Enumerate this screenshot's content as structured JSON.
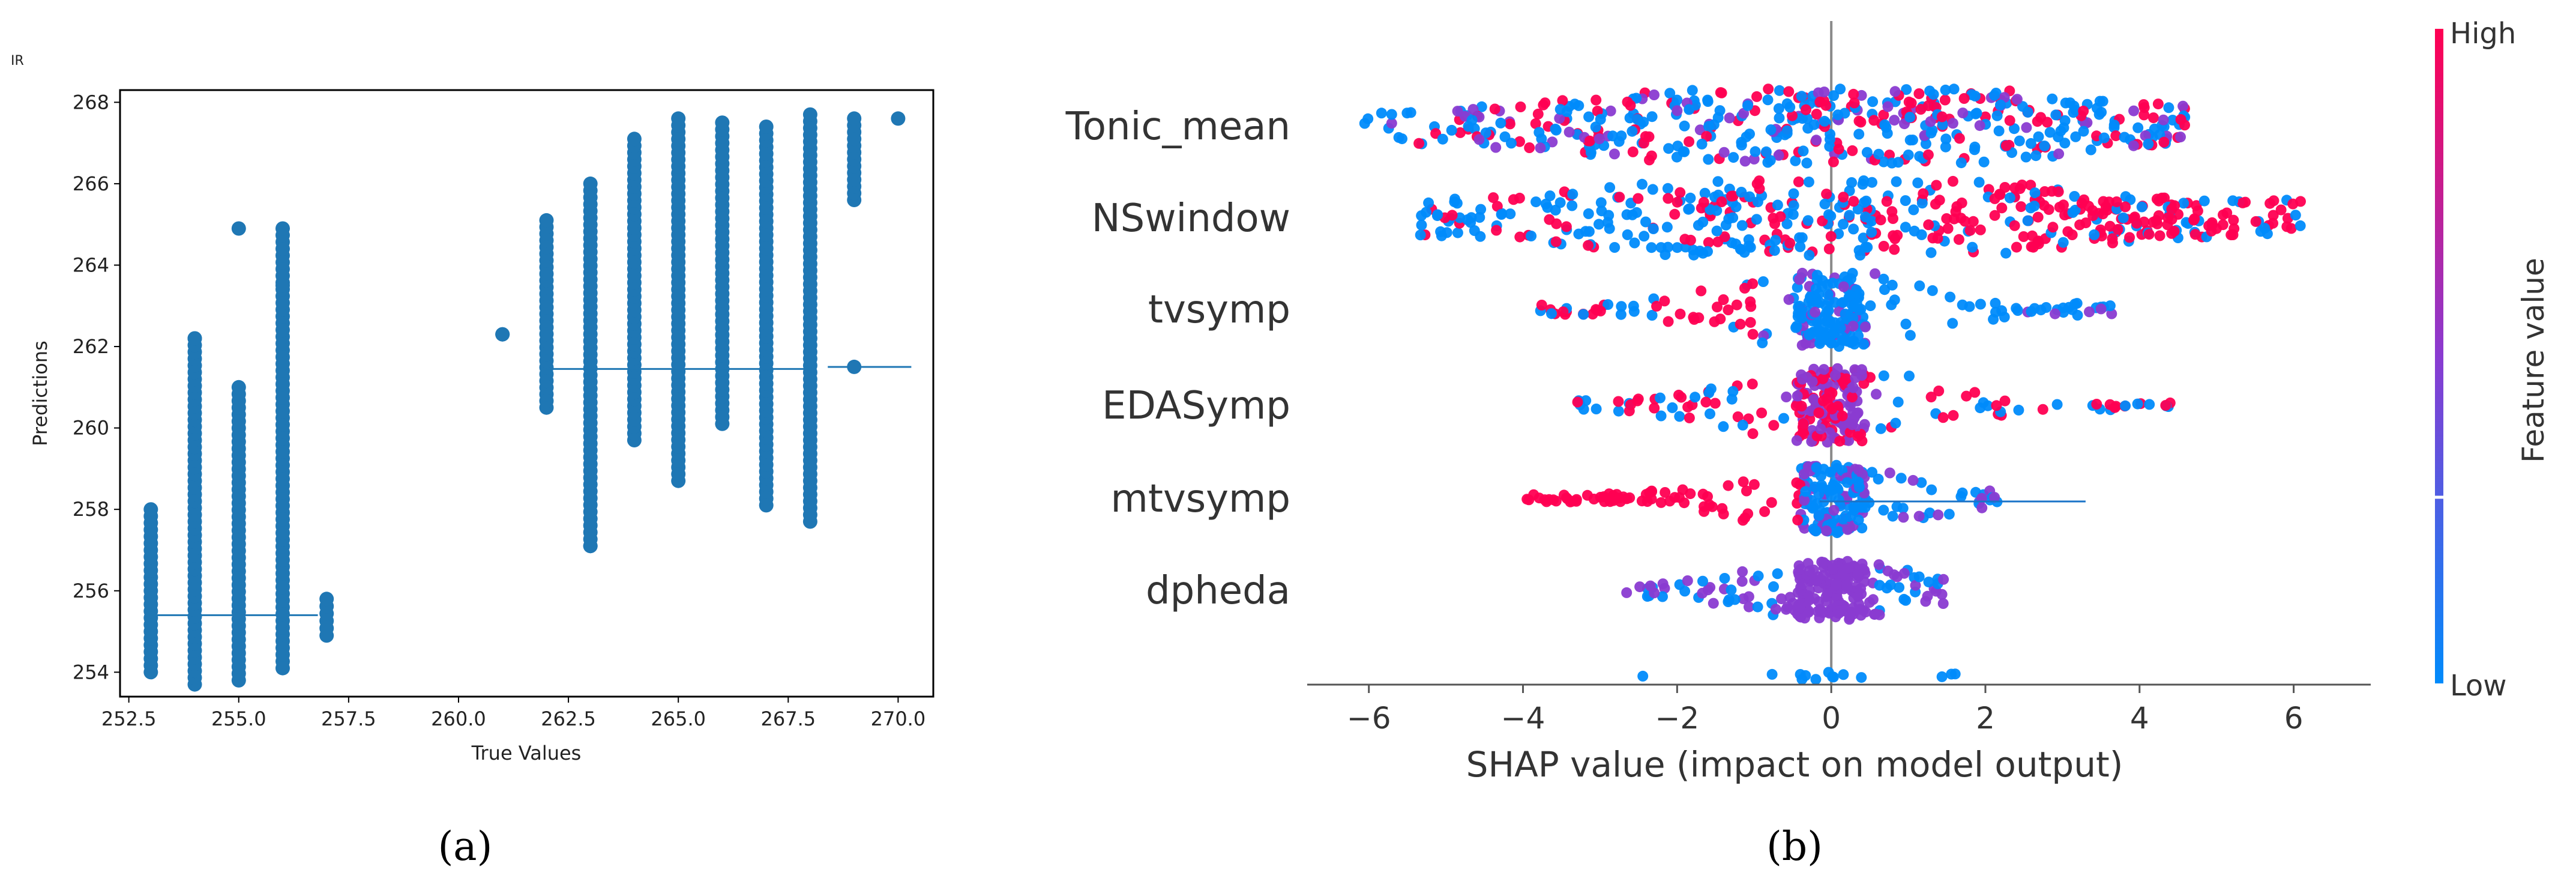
{
  "chart_data": [
    {
      "type": "scatter",
      "panel_label": "(a)",
      "title": "IR",
      "xlabel": "True Values",
      "ylabel": "Predictions",
      "xlim": [
        252.3,
        270.8
      ],
      "ylim": [
        253.4,
        268.3
      ],
      "xticks": [
        "252.5",
        "255.0",
        "257.5",
        "260.0",
        "262.5",
        "265.0",
        "267.5",
        "270.0"
      ],
      "xtick_values": [
        252.5,
        255.0,
        257.5,
        260.0,
        262.5,
        265.0,
        267.5,
        270.0
      ],
      "yticks": [
        "254",
        "256",
        "258",
        "260",
        "262",
        "264",
        "266",
        "268"
      ],
      "ytick_values": [
        254,
        256,
        258,
        260,
        262,
        264,
        266,
        268
      ],
      "point_color": "#1f77b4",
      "columns": [
        {
          "x": 253,
          "ymin": 254.0,
          "ymax": 258.0
        },
        {
          "x": 254,
          "ymin": 253.7,
          "ymax": 262.2
        },
        {
          "x": 255,
          "ymin": 253.8,
          "ymax": 261.0
        },
        {
          "x": 256,
          "ymin": 254.1,
          "ymax": 264.9
        },
        {
          "x": 257,
          "ymin": 254.9,
          "ymax": 255.8
        },
        {
          "x": 261,
          "ymin": 262.3,
          "ymax": 262.3
        },
        {
          "x": 262,
          "ymin": 260.5,
          "ymax": 265.1
        },
        {
          "x": 263,
          "ymin": 257.1,
          "ymax": 266.0
        },
        {
          "x": 264,
          "ymin": 259.7,
          "ymax": 267.1
        },
        {
          "x": 265,
          "ymin": 258.7,
          "ymax": 267.6
        },
        {
          "x": 266,
          "ymin": 260.1,
          "ymax": 267.5
        },
        {
          "x": 267,
          "ymin": 258.1,
          "ymax": 267.4
        },
        {
          "x": 268,
          "ymin": 257.7,
          "ymax": 267.7
        },
        {
          "x": 269,
          "ymin": 265.6,
          "ymax": 267.6
        }
      ],
      "isolated_points": [
        {
          "x": 255,
          "y": 264.9
        },
        {
          "x": 254,
          "y": 262.2
        },
        {
          "x": 256,
          "y": 263.5
        },
        {
          "x": 263,
          "y": 257.1
        },
        {
          "x": 270,
          "y": 267.6
        },
        {
          "x": 269,
          "y": 261.5
        }
      ],
      "reference_segments": [
        {
          "x1": 252.9,
          "x2": 256.8,
          "y": 255.4
        },
        {
          "x1": 262.0,
          "x2": 268.0,
          "y": 261.45
        },
        {
          "x1": 268.4,
          "x2": 270.3,
          "y": 261.5
        }
      ]
    },
    {
      "type": "scatter",
      "subtype": "beeswarm",
      "panel_label": "(b)",
      "xlabel": "SHAP value (impact on model output)",
      "xlim": [
        -6.8,
        7.0
      ],
      "xticks": [
        "−6",
        "−4",
        "−2",
        "0",
        "2",
        "4",
        "6"
      ],
      "xtick_values": [
        -6,
        -4,
        -2,
        0,
        2,
        4,
        6
      ],
      "features": [
        {
          "name": "Tonic_mean",
          "min": -6.1,
          "max": 4.6,
          "width": 1.0
        },
        {
          "name": "NSwindow",
          "min": -5.4,
          "max": 6.3,
          "width": 1.0
        },
        {
          "name": "tvsymp",
          "min": -3.8,
          "max": 3.7,
          "width": 0.55
        },
        {
          "name": "EDASymp",
          "min": -3.3,
          "max": 4.4,
          "width": 0.5
        },
        {
          "name": "mtvsymp",
          "min": -4.0,
          "max": 2.2,
          "width": 0.4
        },
        {
          "name": "dpheda",
          "min": -2.8,
          "max": 1.5,
          "width": 0.35
        },
        {
          "name": "",
          "min": -3.0,
          "max": 1.9,
          "width": 0.05
        }
      ],
      "colorbar": {
        "label": "Feature value",
        "high_label": "High",
        "low_label": "Low",
        "high_color": "#ff0052",
        "low_color": "#008bfb"
      }
    }
  ]
}
